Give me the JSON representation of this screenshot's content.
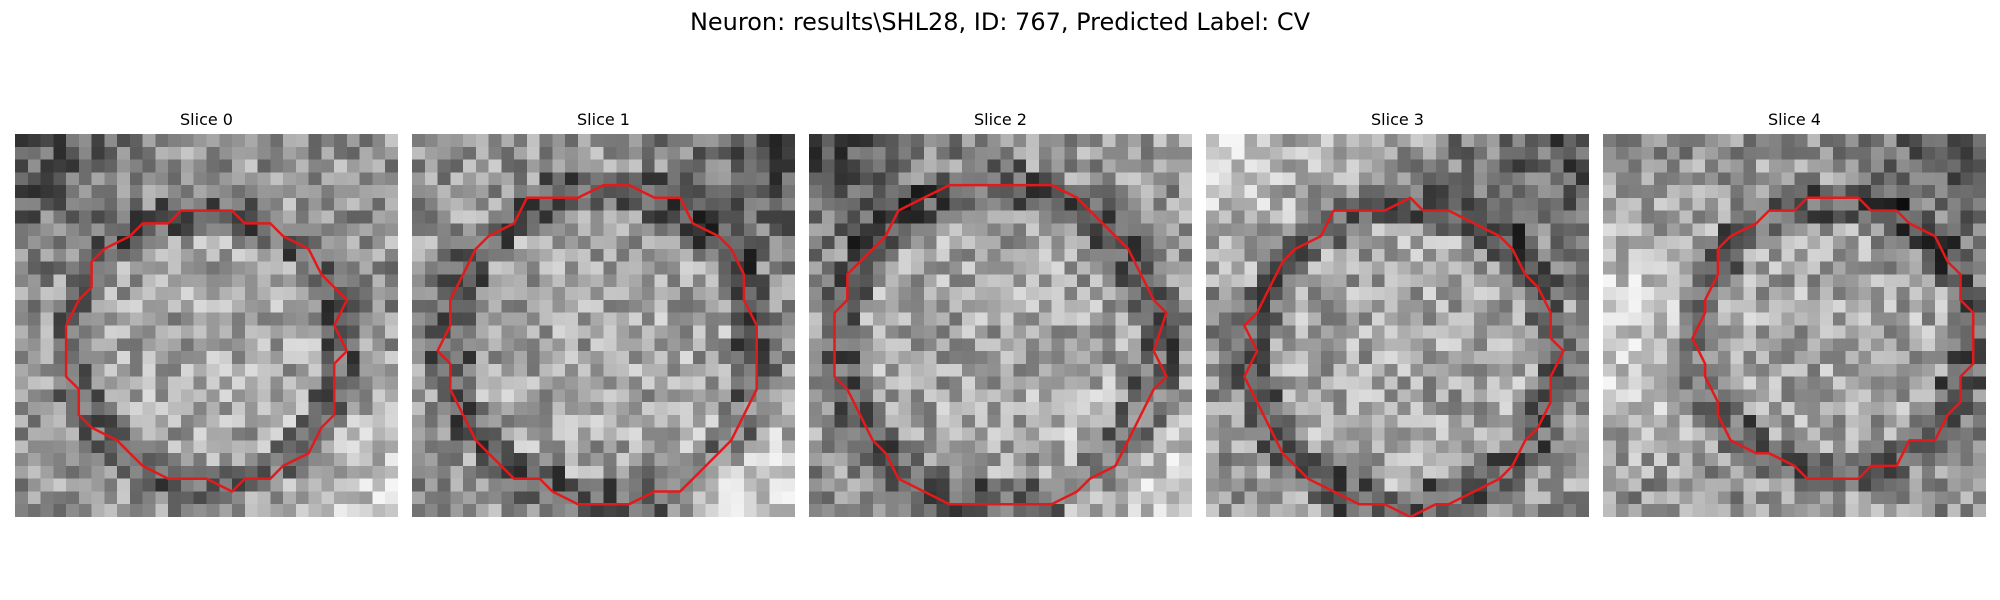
{
  "figure": {
    "suptitle": "Neuron: results\\SHL28, ID: 767, Predicted Label: CV",
    "contour_color": "#e31a1c",
    "colormap": "gray",
    "slices": [
      {
        "title": "Slice 0",
        "seed": 11,
        "center": [
          0.5,
          0.56
        ],
        "radius": 0.36,
        "dark_corner": "top-left",
        "bright_corner": "bottom-right"
      },
      {
        "title": "Slice 1",
        "seed": 23,
        "center": [
          0.5,
          0.55
        ],
        "radius": 0.41,
        "dark_corner": "top-right",
        "bright_corner": "bottom-right"
      },
      {
        "title": "Slice 2",
        "seed": 37,
        "center": [
          0.5,
          0.55
        ],
        "radius": 0.42,
        "dark_corner": "top-left",
        "bright_corner": "bottom-right"
      },
      {
        "title": "Slice 3",
        "seed": 41,
        "center": [
          0.52,
          0.58
        ],
        "radius": 0.4,
        "dark_corner": "top-right",
        "bright_corner": "top-left"
      },
      {
        "title": "Slice 4",
        "seed": 53,
        "center": [
          0.6,
          0.53
        ],
        "radius": 0.36,
        "dark_corner": "top-right",
        "bright_corner": "left"
      }
    ]
  }
}
